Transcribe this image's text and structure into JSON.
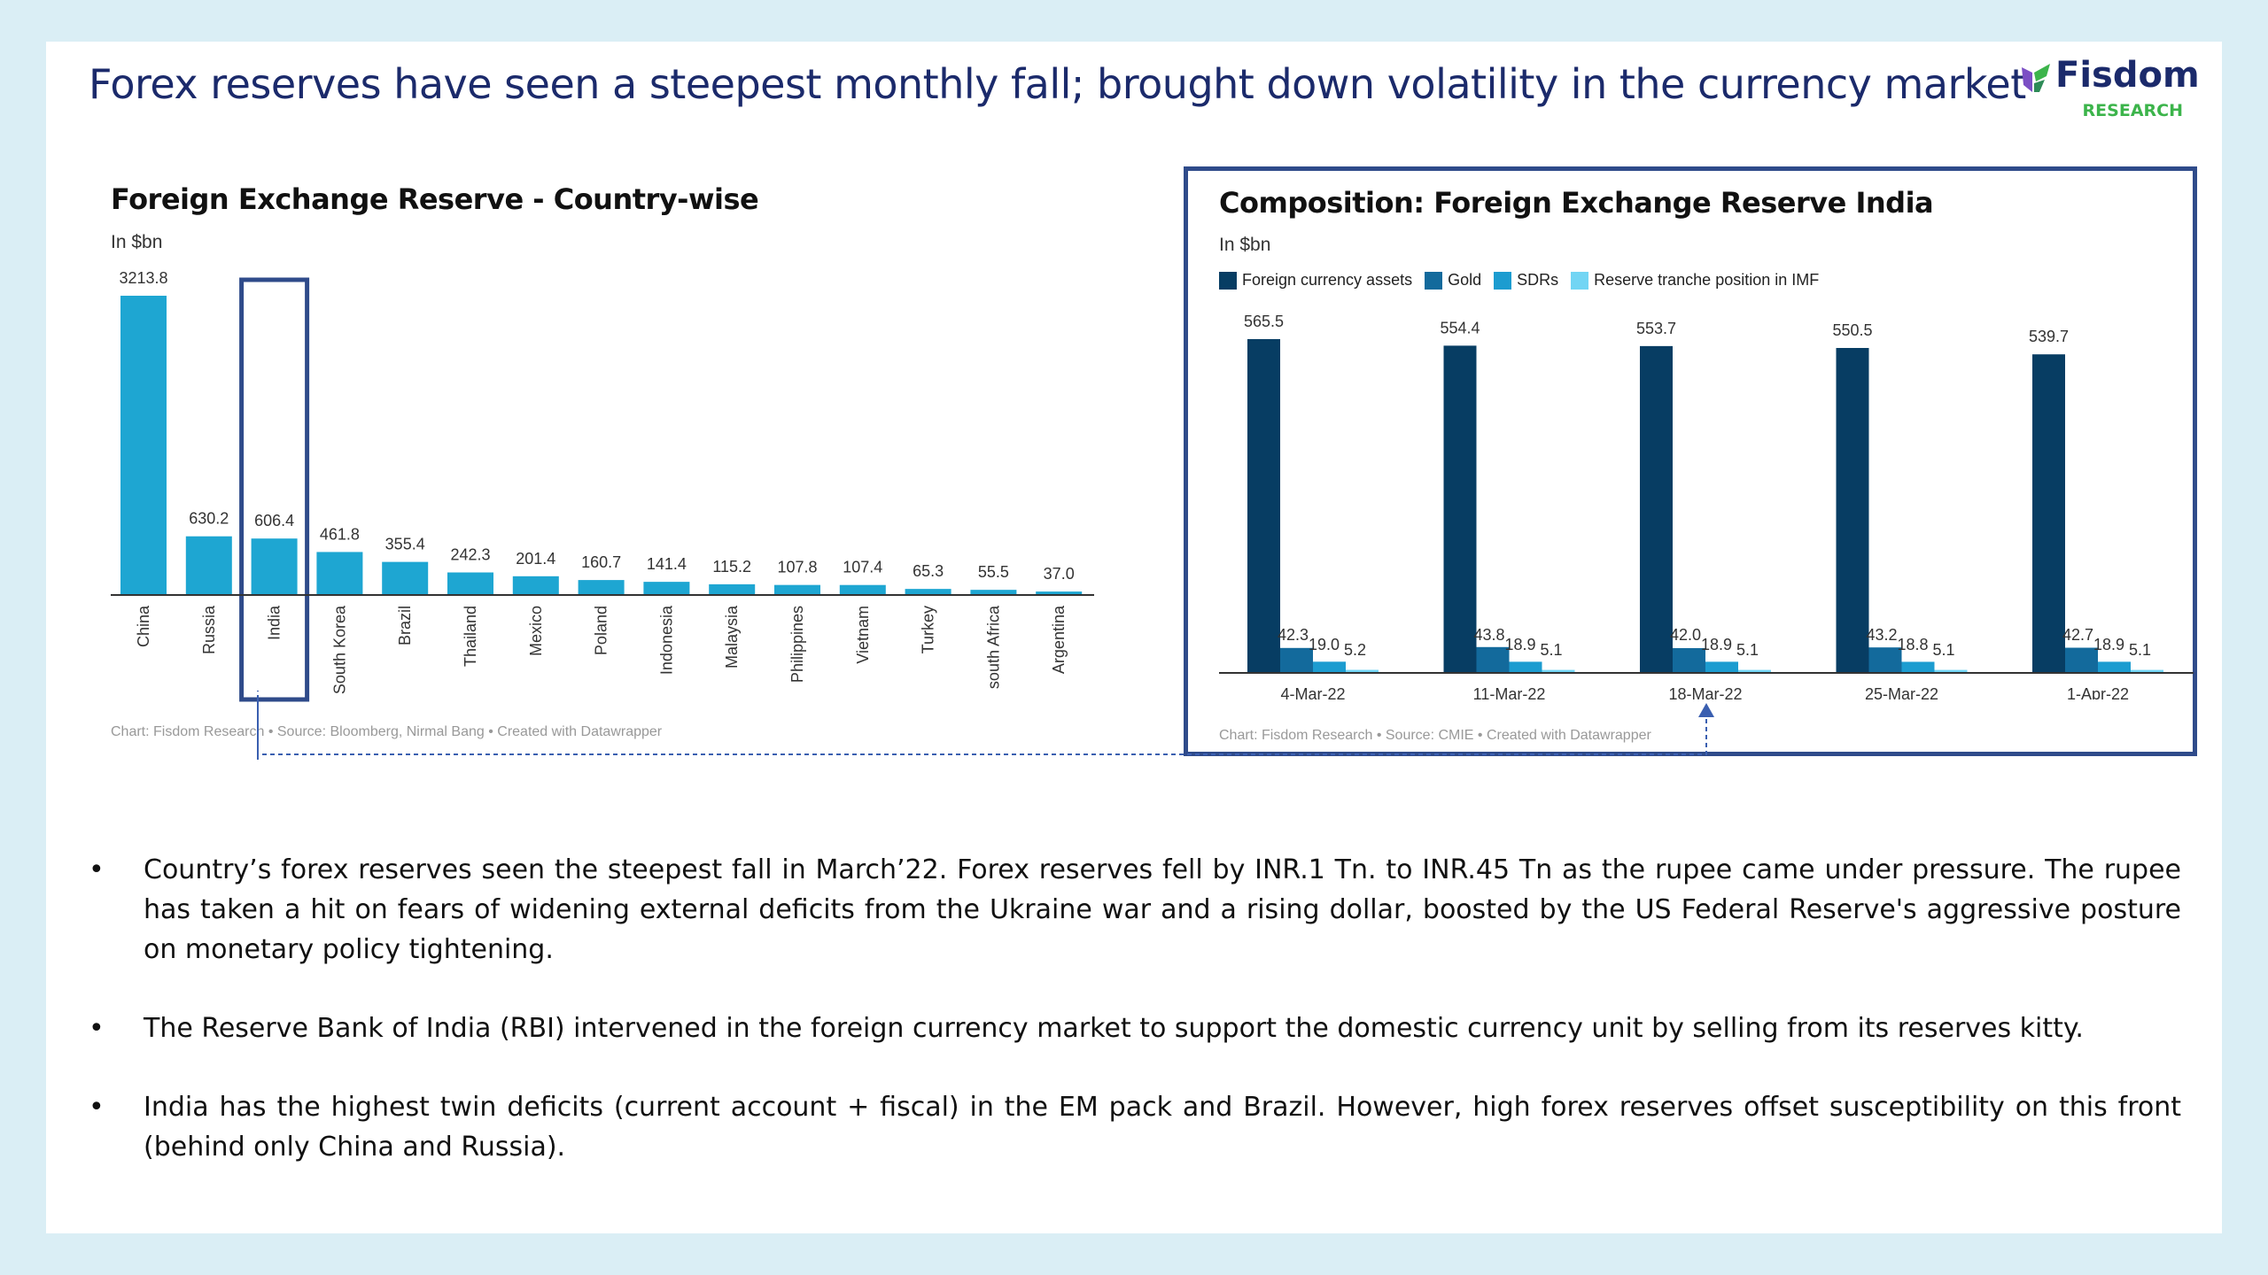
{
  "slide": {
    "title": "Forex reserves have seen a steepest monthly fall; brought down volatility in the currency market",
    "logo_name": "Fisdom",
    "logo_sub": "RESEARCH"
  },
  "chart_data": [
    {
      "type": "bar",
      "title": "Foreign Exchange Reserve - Country-wise",
      "subtitle": "In $bn",
      "categories": [
        "China",
        "Russia",
        "India",
        "South Korea",
        "Brazil",
        "Thailand",
        "Mexico",
        "Poland",
        "Indonesia",
        "Malaysia",
        "Philippines",
        "Vietnam",
        "Turkey",
        "south Africa",
        "Argentina"
      ],
      "values": [
        3213.8,
        630.2,
        606.4,
        461.8,
        355.4,
        242.3,
        201.4,
        160.7,
        141.4,
        115.2,
        107.8,
        107.4,
        65.3,
        55.5,
        37.0
      ],
      "value_labels": [
        "3213.8",
        "630.2",
        "606.4",
        "461.8",
        "355.4",
        "242.3",
        "201.4",
        "160.7",
        "141.4",
        "115.2",
        "107.8",
        "107.4",
        "65.3",
        "55.5",
        "37.0"
      ],
      "highlight": "India",
      "color": "#1ea6d2",
      "footer": "Chart: Fisdom Research • Source: Bloomberg, Nirmal Bang • Created with Datawrapper"
    },
    {
      "type": "bar",
      "title": "Composition: Foreign Exchange Reserve India",
      "subtitle": "In $bn",
      "categories": [
        "4-Mar-22",
        "11-Mar-22",
        "18-Mar-22",
        "25-Mar-22",
        "1-Apr-22"
      ],
      "series": [
        {
          "name": "Foreign currency assets",
          "color": "#073d63",
          "values": [
            565.5,
            554.4,
            553.7,
            550.5,
            539.7
          ],
          "labels": [
            "565.5",
            "554.4",
            "553.7",
            "550.5",
            "539.7"
          ]
        },
        {
          "name": "Gold",
          "color": "#136a9c",
          "values": [
            42.3,
            43.8,
            42.0,
            43.2,
            42.7
          ],
          "labels": [
            "42.3",
            "43.8",
            "42.0",
            "43.2",
            "42.7"
          ]
        },
        {
          "name": "SDRs",
          "color": "#1c9cd0",
          "values": [
            19.0,
            18.9,
            18.9,
            18.8,
            18.9
          ],
          "labels": [
            "19.0",
            "18.9",
            "18.9",
            "18.8",
            "18.9"
          ]
        },
        {
          "name": "Reserve tranche position in IMF",
          "color": "#72d5f4",
          "values": [
            5.2,
            5.1,
            5.1,
            5.1,
            5.1
          ],
          "labels": [
            "5.2",
            "5.1",
            "5.1",
            "5.1",
            "5.1"
          ]
        }
      ],
      "footer": "Chart: Fisdom Research • Source: CMIE • Created with Datawrapper"
    }
  ],
  "bullets": [
    " Country’s forex reserves seen the steepest fall in March’22. Forex reserves fell by INR.1 Tn. to INR.45 Tn as the rupee came under pressure. The rupee has taken a hit on fears of widening external deficits from the Ukraine war and a rising dollar, boosted by the US Federal Reserve's aggressive posture on monetary policy tightening.",
    "The Reserve Bank of India (RBI) intervened in the foreign currency market to support the domestic currency unit by selling from its reserves kitty.",
    "India has the highest twin deficits (current account + fiscal) in the EM pack and Brazil. However, high forex reserves offset susceptibility on this front (behind only China and Russia)."
  ]
}
